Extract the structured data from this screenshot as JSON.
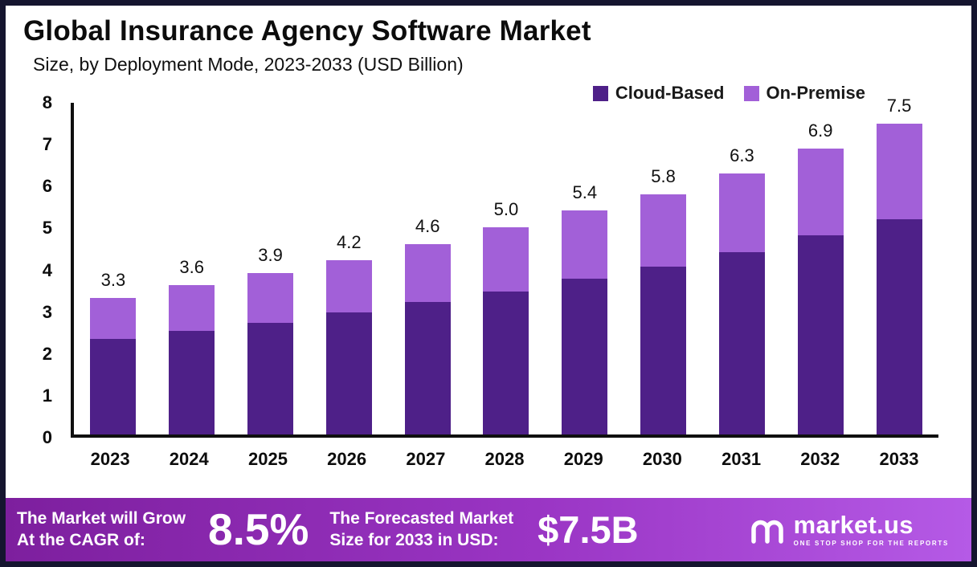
{
  "title": "Global Insurance Agency Software Market",
  "subtitle": "Size, by Deployment Mode, 2023-2033 (USD Billion)",
  "colors": {
    "cloud_based": "#4e2088",
    "on_premise": "#a260d8",
    "frame_border": "#15152f",
    "footer_gradient_start": "#7d1f9e",
    "footer_gradient_end": "#b55ae6"
  },
  "legend": [
    {
      "label": "Cloud-Based",
      "color": "#4e2088"
    },
    {
      "label": "On-Premise",
      "color": "#a260d8"
    }
  ],
  "chart_data": {
    "type": "bar",
    "stacked": true,
    "title": "Global Insurance Agency Software Market Size, by Deployment Mode, 2023-2033 (USD Billion)",
    "categories": [
      "2023",
      "2024",
      "2025",
      "2026",
      "2027",
      "2028",
      "2029",
      "2030",
      "2031",
      "2032",
      "2033"
    ],
    "series": [
      {
        "name": "Cloud-Based",
        "color": "#4e2088",
        "values": [
          2.3,
          2.5,
          2.7,
          2.95,
          3.2,
          3.45,
          3.75,
          4.05,
          4.4,
          4.8,
          5.2
        ]
      },
      {
        "name": "On-Premise",
        "color": "#a260d8",
        "values": [
          1.0,
          1.1,
          1.2,
          1.25,
          1.4,
          1.55,
          1.65,
          1.75,
          1.9,
          2.1,
          2.3
        ]
      }
    ],
    "totals": [
      "3.3",
      "3.6",
      "3.9",
      "4.2",
      "4.6",
      "5.0",
      "5.4",
      "5.8",
      "6.3",
      "6.9",
      "7.5"
    ],
    "xlabel": "",
    "ylabel": "",
    "ylim": [
      0,
      8
    ],
    "yticks": [
      0,
      1,
      2,
      3,
      4,
      5,
      6,
      7,
      8
    ],
    "grid": false,
    "legend_position": "top-right"
  },
  "footer": {
    "cagr_label_line1": "The Market will Grow",
    "cagr_label_line2": "At the CAGR of:",
    "cagr_value": "8.5%",
    "forecast_label_line1": "The Forecasted Market",
    "forecast_label_line2": "Size for 2033 in USD:",
    "forecast_value": "$7.5B",
    "brand_name": "market.us",
    "brand_tagline": "ONE STOP SHOP FOR THE REPORTS"
  }
}
